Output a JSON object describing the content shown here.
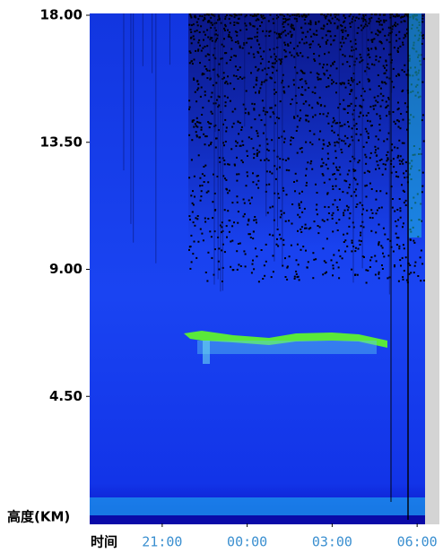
{
  "chart_data": {
    "type": "image",
    "ylabel": "高度(KM)",
    "xlabel": "时间",
    "ylim": [
      0,
      18
    ],
    "yticks": [
      {
        "value": 18,
        "label": "18.00"
      },
      {
        "value": 13.5,
        "label": "13.50"
      },
      {
        "value": 9,
        "label": "9.00"
      },
      {
        "value": 4.5,
        "label": "4.50"
      }
    ],
    "xlim": [
      18.44,
      30.28
    ],
    "xticks": [
      {
        "value": 21,
        "label": "21:00"
      },
      {
        "value": 24,
        "label": "00:00"
      },
      {
        "value": 27,
        "label": "03:00"
      },
      {
        "value": 30,
        "label": "06:00"
      }
    ]
  }
}
